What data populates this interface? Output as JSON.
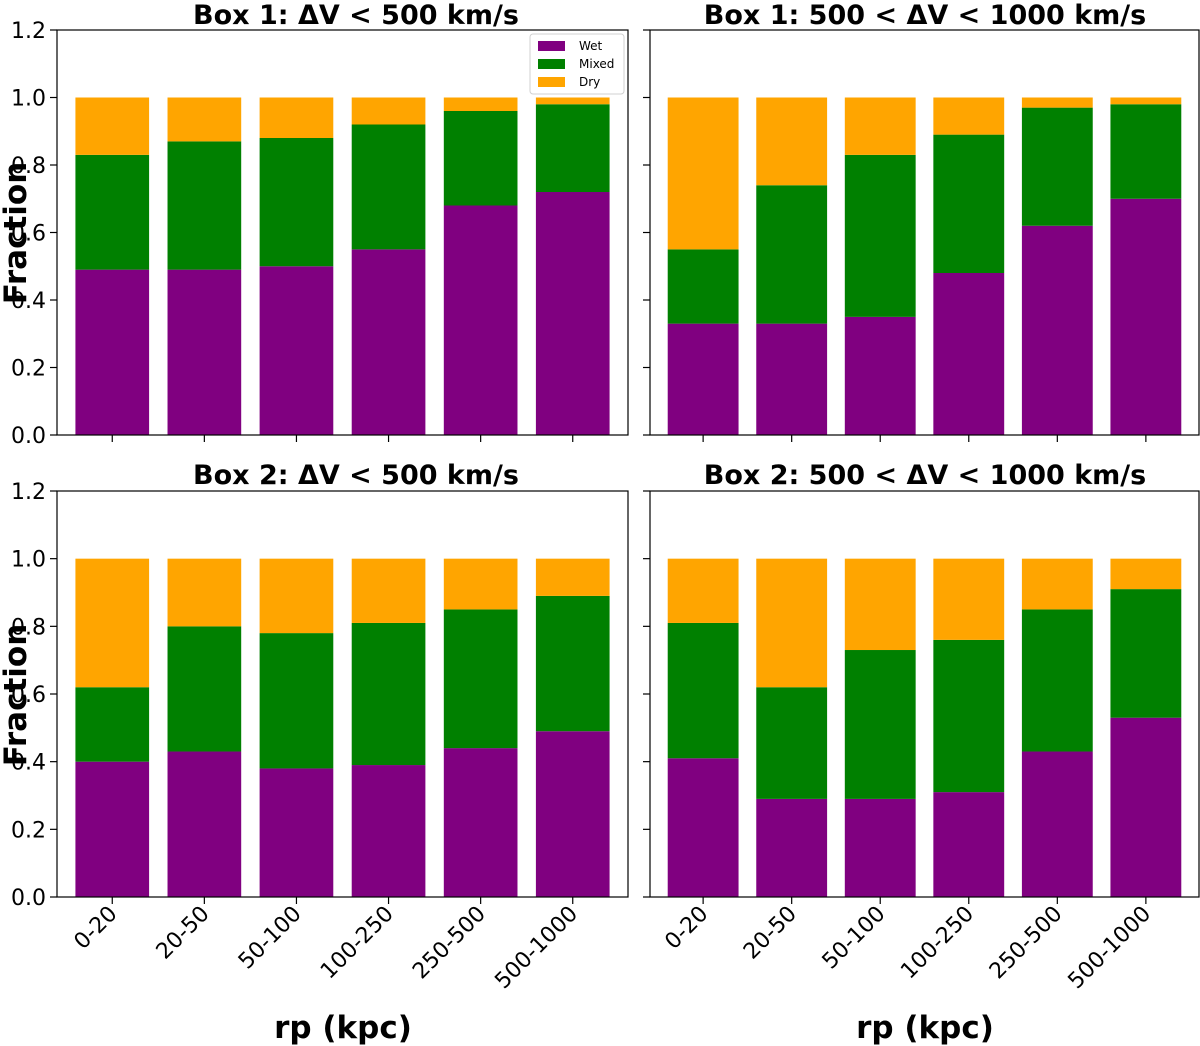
{
  "colors": {
    "Wet": "#800080",
    "Mixed": "#008000",
    "Dry": "#ffa500"
  },
  "chart_data": [
    {
      "type": "bar",
      "stacked": true,
      "title": "Box 1: ΔV < 500 km/s",
      "xlabel": "",
      "ylabel": "Fraction",
      "ylim": [
        0,
        1.2
      ],
      "yticks": [
        "0.0",
        "0.2",
        "0.4",
        "0.6",
        "0.8",
        "1.0",
        "1.2"
      ],
      "categories": [
        "0-20",
        "20-50",
        "50-100",
        "100-250",
        "250-500",
        "500-1000"
      ],
      "legend": {
        "placement": "top-right",
        "entries": [
          "Wet",
          "Mixed",
          "Dry"
        ]
      },
      "series": [
        {
          "name": "Wet",
          "values": [
            0.49,
            0.49,
            0.5,
            0.55,
            0.68,
            0.72
          ]
        },
        {
          "name": "Mixed",
          "values": [
            0.34,
            0.38,
            0.38,
            0.37,
            0.28,
            0.26
          ]
        },
        {
          "name": "Dry",
          "values": [
            0.17,
            0.13,
            0.12,
            0.08,
            0.04,
            0.02
          ]
        }
      ]
    },
    {
      "type": "bar",
      "stacked": true,
      "title": "Box 1: 500 < ΔV < 1000 km/s",
      "xlabel": "",
      "ylabel": "",
      "ylim": [
        0,
        1.2
      ],
      "categories": [
        "0-20",
        "20-50",
        "50-100",
        "100-250",
        "250-500",
        "500-1000"
      ],
      "series": [
        {
          "name": "Wet",
          "values": [
            0.33,
            0.33,
            0.35,
            0.48,
            0.62,
            0.7
          ]
        },
        {
          "name": "Mixed",
          "values": [
            0.22,
            0.41,
            0.48,
            0.41,
            0.35,
            0.28
          ]
        },
        {
          "name": "Dry",
          "values": [
            0.45,
            0.26,
            0.17,
            0.11,
            0.03,
            0.02
          ]
        }
      ]
    },
    {
      "type": "bar",
      "stacked": true,
      "title": "Box 2: ΔV < 500 km/s",
      "xlabel": "rp (kpc)",
      "ylabel": "Fraction",
      "ylim": [
        0,
        1.2
      ],
      "yticks": [
        "0.0",
        "0.2",
        "0.4",
        "0.6",
        "0.8",
        "1.0",
        "1.2"
      ],
      "categories": [
        "0-20",
        "20-50",
        "50-100",
        "100-250",
        "250-500",
        "500-1000"
      ],
      "series": [
        {
          "name": "Wet",
          "values": [
            0.4,
            0.43,
            0.38,
            0.39,
            0.44,
            0.49
          ]
        },
        {
          "name": "Mixed",
          "values": [
            0.22,
            0.37,
            0.4,
            0.42,
            0.41,
            0.4
          ]
        },
        {
          "name": "Dry",
          "values": [
            0.38,
            0.2,
            0.22,
            0.19,
            0.15,
            0.11
          ]
        }
      ]
    },
    {
      "type": "bar",
      "stacked": true,
      "title": "Box 2: 500 < ΔV < 1000 km/s",
      "xlabel": "rp (kpc)",
      "ylabel": "",
      "ylim": [
        0,
        1.2
      ],
      "categories": [
        "0-20",
        "20-50",
        "50-100",
        "100-250",
        "250-500",
        "500-1000"
      ],
      "series": [
        {
          "name": "Wet",
          "values": [
            0.41,
            0.29,
            0.29,
            0.31,
            0.43,
            0.53
          ]
        },
        {
          "name": "Mixed",
          "values": [
            0.4,
            0.33,
            0.44,
            0.45,
            0.42,
            0.38
          ]
        },
        {
          "name": "Dry",
          "values": [
            0.19,
            0.38,
            0.27,
            0.24,
            0.15,
            0.09
          ]
        }
      ]
    }
  ]
}
